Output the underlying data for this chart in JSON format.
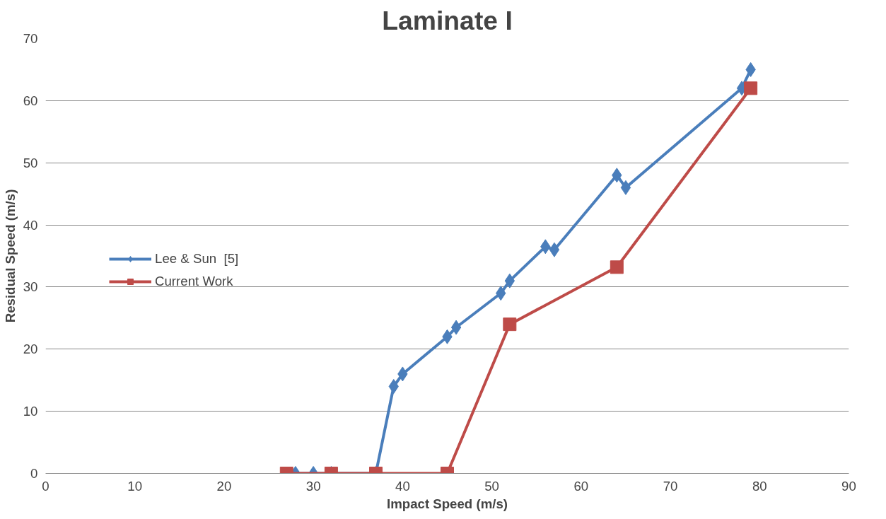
{
  "chart_data": {
    "type": "line",
    "title": "Laminate I",
    "xlabel": "Impact Speed (m/s)",
    "ylabel": "Residual Speed (m/s)",
    "xlim": [
      0,
      90
    ],
    "xticks": [
      0,
      10,
      20,
      30,
      40,
      50,
      60,
      70,
      80,
      90
    ],
    "ylim": [
      0,
      70
    ],
    "yticks": [
      0,
      10,
      20,
      30,
      40,
      50,
      60,
      70
    ],
    "grid": "y",
    "legend": "left",
    "series": [
      {
        "name": "Lee & Sun  [5]",
        "color": "#4a7ebb",
        "marker": "diamond",
        "x": [
          28,
          30,
          32,
          37,
          39,
          40,
          45,
          46,
          51,
          52,
          56,
          57,
          64,
          65,
          78,
          79
        ],
        "values": [
          0,
          0,
          0,
          0,
          14,
          16,
          22,
          23.5,
          29,
          31,
          36.5,
          36,
          48,
          46,
          62,
          65
        ]
      },
      {
        "name": "Current Work",
        "color": "#be4b48",
        "marker": "square",
        "x": [
          27,
          32,
          37,
          45,
          52,
          64,
          79
        ],
        "values": [
          0,
          0,
          0,
          0,
          24,
          33.2,
          62
        ]
      }
    ]
  }
}
